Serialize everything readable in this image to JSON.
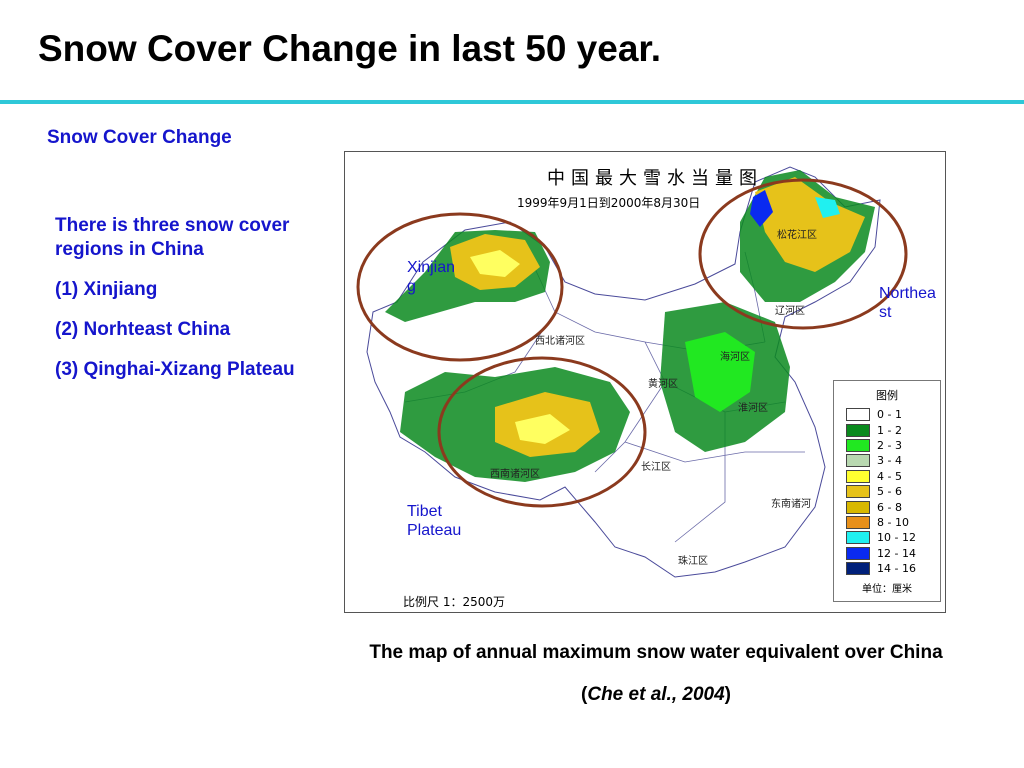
{
  "slide": {
    "title": "Snow Cover Change in last 50 year.",
    "subheading": "Snow Cover Change",
    "intro": "There is three snow cover regions in China",
    "regions_list": [
      "(1) Xinjiang",
      "(2) Norhteast China",
      "(3) Qinghai-Xizang Plateau"
    ],
    "caption": "The map of annual maximum snow water equivalent over China",
    "citation_open": "(",
    "citation_text": "Che et al., 2004",
    "citation_close": ")",
    "rule_color": "#2ec8d8",
    "text_color": "#1515cc"
  },
  "map": {
    "title": "中国最大雪水当量图",
    "date_range": "1999年9月1日到2000年8月30日",
    "scale": "比例尺  1：2500万",
    "basins": {
      "songhua": "松花江区",
      "liaohe": "辽河区",
      "northwest": "西北诸河区",
      "haihe": "海河区",
      "yellow": "黄河区",
      "huaihe": "淮河区",
      "southwest": "西南诸河区",
      "yangtze": "长江区",
      "southeast": "东南诸河",
      "pearl": "珠江区"
    },
    "region_labels": {
      "xinjiang": [
        "Xinjian",
        "g"
      ],
      "northeast": [
        "Northea",
        "st"
      ],
      "tibet": [
        "Tibet",
        "Plateau"
      ]
    },
    "circle_color": "#8b3a1e"
  },
  "legend": {
    "title": "图例",
    "unit": "单位：厘米",
    "items": [
      {
        "label": "0 - 1",
        "color": "#ffffff"
      },
      {
        "label": "1 - 2",
        "color": "#0a8a1e"
      },
      {
        "label": "2 - 3",
        "color": "#21e821"
      },
      {
        "label": "3 - 4",
        "color": "#b8d8b0"
      },
      {
        "label": "4 - 5",
        "color": "#ffff30"
      },
      {
        "label": "5 - 6",
        "color": "#e6c21a"
      },
      {
        "label": "6 - 8",
        "color": "#d8b800"
      },
      {
        "label": "8 - 10",
        "color": "#e8901a"
      },
      {
        "label": "10 - 12",
        "color": "#20f0f0"
      },
      {
        "label": "12 - 14",
        "color": "#0a2af0"
      },
      {
        "label": "14 - 16",
        "color": "#00207a"
      }
    ]
  }
}
